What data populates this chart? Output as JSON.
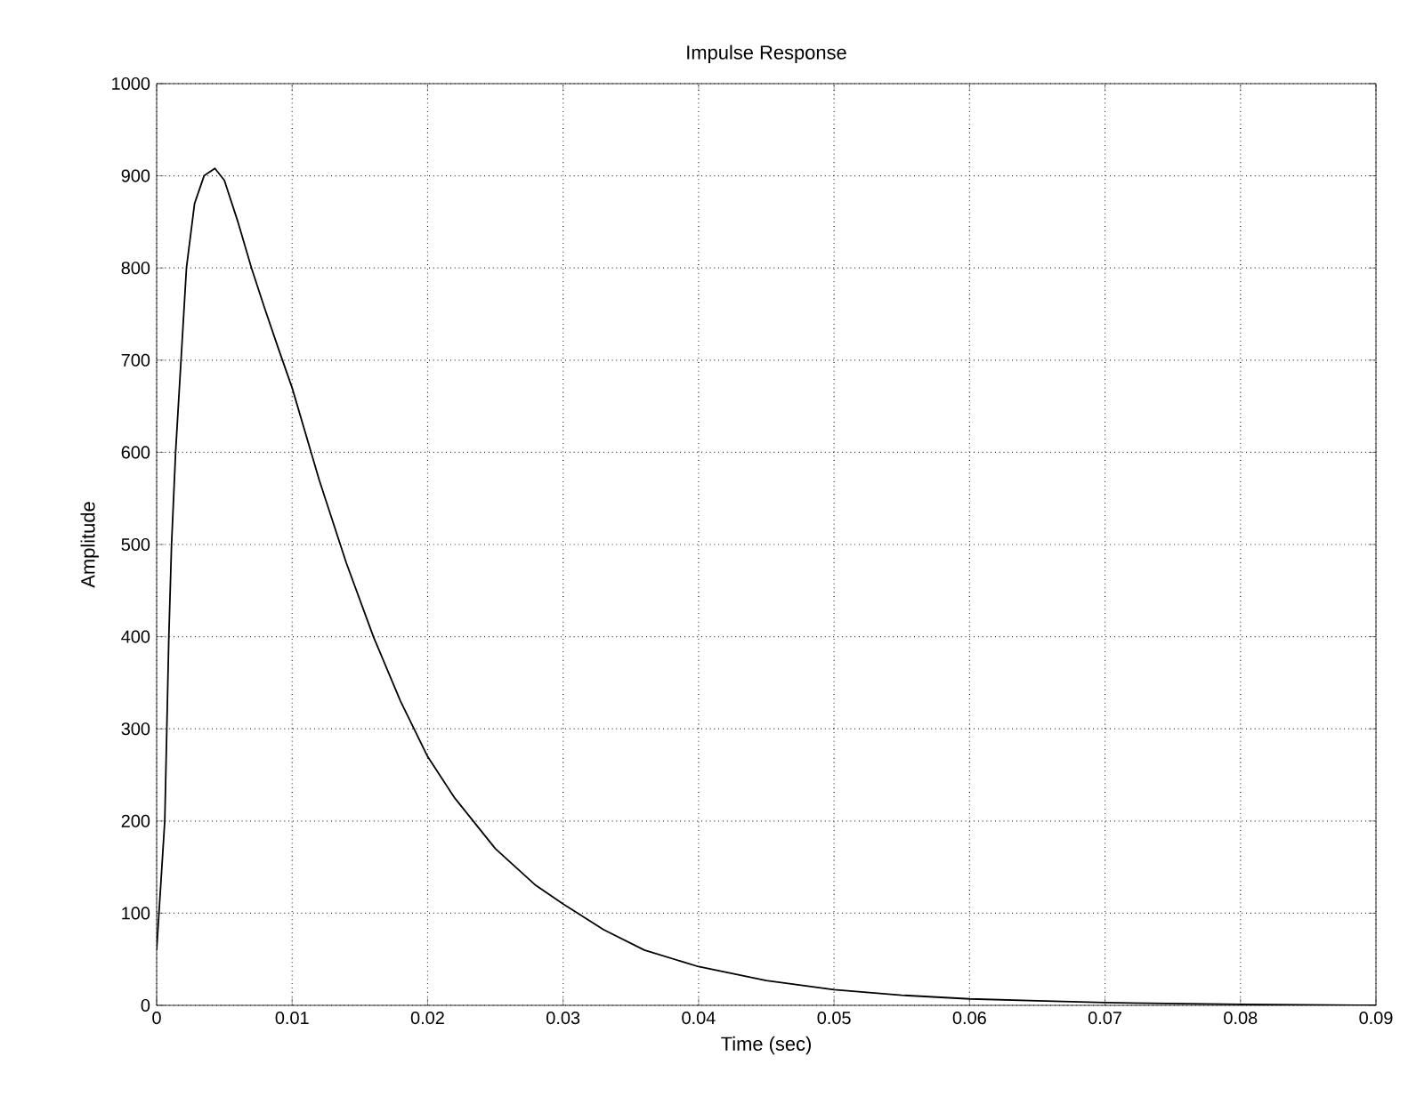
{
  "chart_data": {
    "type": "line",
    "title": "Impulse Response",
    "xlabel": "Time (sec)",
    "ylabel": "Amplitude",
    "x": [
      0,
      0.0003,
      0.0006,
      0.0009,
      0.0011,
      0.0014,
      0.0018,
      0.0022,
      0.0028,
      0.0035,
      0.0043,
      0.005,
      0.006,
      0.007,
      0.008,
      0.009,
      0.01,
      0.012,
      0.014,
      0.016,
      0.018,
      0.02,
      0.022,
      0.025,
      0.028,
      0.03,
      0.033,
      0.036,
      0.04,
      0.045,
      0.05,
      0.055,
      0.06,
      0.065,
      0.07,
      0.08,
      0.09
    ],
    "series": [
      {
        "color": "#000000",
        "values": [
          60,
          130,
          200,
          400,
          500,
          600,
          700,
          800,
          870,
          900,
          908,
          895,
          850,
          800,
          755,
          712,
          670,
          570,
          480,
          400,
          330,
          270,
          225,
          170,
          130,
          110,
          82,
          60,
          42,
          27,
          17,
          11,
          7,
          5,
          3,
          1,
          0
        ]
      }
    ],
    "xlim": [
      0,
      0.09
    ],
    "ylim": [
      0,
      1000
    ],
    "xticks": [
      0,
      0.01,
      0.02,
      0.03,
      0.04,
      0.05,
      0.06,
      0.07,
      0.08,
      0.09
    ],
    "yticks": [
      0,
      100,
      200,
      300,
      400,
      500,
      600,
      700,
      800,
      900,
      1000
    ],
    "grid": true,
    "marker": "none",
    "line_style": "solid"
  }
}
